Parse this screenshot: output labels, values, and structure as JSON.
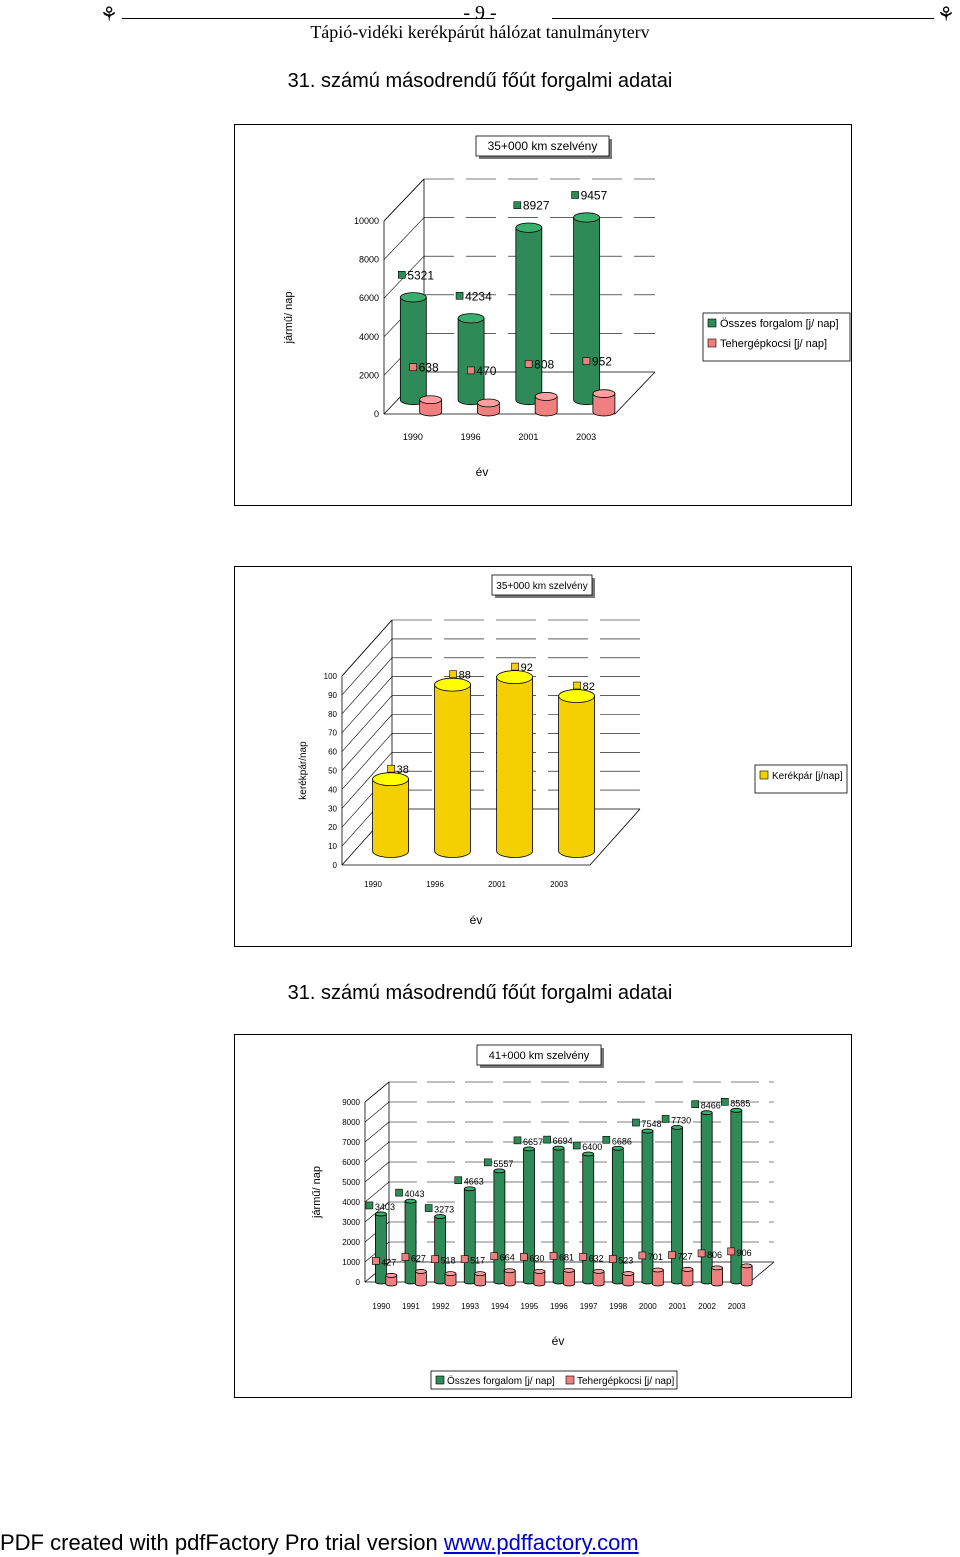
{
  "header": {
    "page_number": "- 9 -",
    "doc_title": "Tápió-vidéki kerékpárút hálózat tanulmányterv",
    "icon_left": "bicycle-icon",
    "icon_right": "bicycle-icon"
  },
  "sections": {
    "title1": "31. számú másodrendű főút forgalmi adatai",
    "title2": "31. számú másodrendű főút forgalmi adatai"
  },
  "footer": {
    "text": "PDF created with pdfFactory Pro trial version ",
    "link": "www.pdffactory.com"
  },
  "chart_data": [
    {
      "type": "bar",
      "title": "35+000 km szelvény",
      "xlabel": "év",
      "ylabel": "jármű/ nap",
      "categories": [
        "1990",
        "1996",
        "2001",
        "2003"
      ],
      "ylim": [
        0,
        10000
      ],
      "yticks": [
        "0",
        "2000",
        "4000",
        "6000",
        "8000",
        "10000"
      ],
      "series": [
        {
          "name": "Összes forgalom [j/ nap]",
          "color": "#2e8b57",
          "values": [
            5321,
            4234,
            8927,
            9457
          ]
        },
        {
          "name": "Tehergépkocsi [j/ nap]",
          "color": "#f08080",
          "values": [
            638,
            470,
            808,
            952
          ]
        }
      ],
      "legend": "right"
    },
    {
      "type": "bar",
      "title": "35+000 km szelvény",
      "xlabel": "év",
      "ylabel": "kerékpár/nap",
      "categories": [
        "1990",
        "1996",
        "2001",
        "2003"
      ],
      "ylim": [
        0,
        100
      ],
      "yticks": [
        "0",
        "10",
        "20",
        "30",
        "40",
        "50",
        "60",
        "70",
        "80",
        "90",
        "100"
      ],
      "series": [
        {
          "name": "Kerékpár [j/nap]",
          "color": "#f5d000",
          "values": [
            38,
            88,
            92,
            82
          ]
        }
      ],
      "legend": "right"
    },
    {
      "type": "bar",
      "title": "41+000 km szelvény",
      "xlabel": "év",
      "ylabel": "jármű/ nap",
      "categories": [
        "1990",
        "1991",
        "1992",
        "1993",
        "1994",
        "1995",
        "1996",
        "1997",
        "1998",
        "2000",
        "2001",
        "2002",
        "2003"
      ],
      "ylim": [
        0,
        9000
      ],
      "yticks": [
        "0",
        "1000",
        "2000",
        "3000",
        "4000",
        "5000",
        "6000",
        "7000",
        "8000",
        "9000"
      ],
      "series": [
        {
          "name": "Összes forgalom [j/ nap]",
          "color": "#2e8b57",
          "values": [
            3403,
            4043,
            3273,
            4663,
            5557,
            6657,
            6694,
            6400,
            6686,
            7548,
            7730,
            8466,
            8585
          ]
        },
        {
          "name": "Tehergépkocsi [j/ nap]",
          "color": "#f08080",
          "values": [
            427,
            627,
            518,
            517,
            664,
            630,
            681,
            632,
            523,
            701,
            727,
            806,
            906
          ]
        }
      ],
      "legend": "bottom"
    }
  ]
}
